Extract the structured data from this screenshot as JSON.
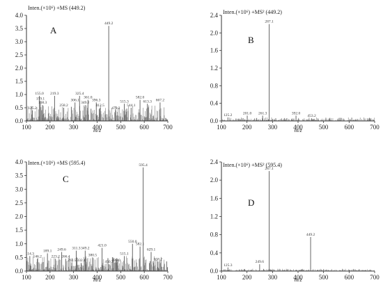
{
  "chart_data": [
    {
      "type": "bar",
      "panel_label": "A",
      "header": "Inten.(×10⁶) +MS (449.2)",
      "xlabel": "m/z",
      "xlim": [
        100,
        700
      ],
      "ylim": [
        0,
        4.0
      ],
      "xticks": [
        100,
        200,
        300,
        400,
        500,
        600,
        700
      ],
      "yticks": [
        "0.0",
        "0.5",
        "1.0",
        "1.5",
        "2.0",
        "2.5",
        "3.0",
        "3.5",
        "4.0"
      ],
      "ytick_values": [
        0,
        0.5,
        1.0,
        1.5,
        2.0,
        2.5,
        3.0,
        3.5,
        4.0
      ],
      "noise_level": 0.6,
      "peaks": [
        {
          "x": 125.2,
          "y": 0.4,
          "label": "125.2"
        },
        {
          "x": 155.0,
          "y": 0.95,
          "label": "155.0"
        },
        {
          "x": 159.1,
          "y": 0.75,
          "label": "159.1"
        },
        {
          "x": 168.3,
          "y": 0.6,
          "label": "168.3"
        },
        {
          "x": 219.3,
          "y": 0.95,
          "label": "219.3"
        },
        {
          "x": 258.2,
          "y": 0.5,
          "label": "258.2"
        },
        {
          "x": 306.1,
          "y": 0.7,
          "label": "306.1"
        },
        {
          "x": 325.4,
          "y": 0.95,
          "label": "325.4"
        },
        {
          "x": 349.2,
          "y": 0.6,
          "label": "349.2"
        },
        {
          "x": 361.0,
          "y": 0.8,
          "label": "361.0"
        },
        {
          "x": 396.3,
          "y": 0.7,
          "label": "396.3"
        },
        {
          "x": 412.5,
          "y": 0.5,
          "label": "412.5"
        },
        {
          "x": 449.2,
          "y": 3.6,
          "label": "449.2"
        },
        {
          "x": 479.2,
          "y": 0.4,
          "label": "479.2"
        },
        {
          "x": 515.3,
          "y": 0.65,
          "label": "515.3"
        },
        {
          "x": 544.1,
          "y": 0.5,
          "label": "544.1"
        },
        {
          "x": 582.0,
          "y": 0.8,
          "label": "582.0"
        },
        {
          "x": 613.3,
          "y": 0.65,
          "label": "613.3"
        },
        {
          "x": 667.2,
          "y": 0.7,
          "label": "667.2"
        }
      ]
    },
    {
      "type": "bar",
      "panel_label": "B",
      "header": "Inten.(×10⁶) +MS² (449.2)",
      "xlabel": "m/z",
      "xlim": [
        100,
        700
      ],
      "ylim": [
        0,
        2.4
      ],
      "xticks": [
        100,
        200,
        300,
        400,
        500,
        600,
        700
      ],
      "yticks": [
        "0.0",
        "0.4",
        "0.8",
        "1.2",
        "1.6",
        "2.0",
        "2.4"
      ],
      "ytick_values": [
        0,
        0.4,
        0.8,
        1.2,
        1.6,
        2.0,
        2.4
      ],
      "noise_level": 0.08,
      "peaks": [
        {
          "x": 125.2,
          "y": 0.08,
          "label": "125.2"
        },
        {
          "x": 201.0,
          "y": 0.12,
          "label": "201.0"
        },
        {
          "x": 261.3,
          "y": 0.12,
          "label": "261.3"
        },
        {
          "x": 287.1,
          "y": 2.2,
          "label": "287.1"
        },
        {
          "x": 392.0,
          "y": 0.12,
          "label": "392.0"
        },
        {
          "x": 453.2,
          "y": 0.06,
          "label": "453.2"
        }
      ]
    },
    {
      "type": "bar",
      "panel_label": "C",
      "header": "Inten.(×10⁶) +MS (595.4)",
      "xlabel": "m/z",
      "xlim": [
        100,
        700
      ],
      "ylim": [
        0,
        4.0
      ],
      "xticks": [
        100,
        200,
        300,
        400,
        500,
        600,
        700
      ],
      "yticks": [
        "0.0",
        "0.5",
        "1.0",
        "1.5",
        "2.0",
        "2.5",
        "3.0",
        "3.5",
        "4.0"
      ],
      "ytick_values": [
        0,
        0.5,
        1.0,
        1.5,
        2.0,
        2.5,
        3.0,
        3.5,
        4.0
      ],
      "noise_level": 0.55,
      "peaks": [
        {
          "x": 114.3,
          "y": 0.55,
          "label": "114.3"
        },
        {
          "x": 146.2,
          "y": 0.45,
          "label": "146.2"
        },
        {
          "x": 189.1,
          "y": 0.65,
          "label": "189.1"
        },
        {
          "x": 223.2,
          "y": 0.45,
          "label": "223.2"
        },
        {
          "x": 249.6,
          "y": 0.7,
          "label": "249.6"
        },
        {
          "x": 266.4,
          "y": 0.45,
          "label": "266.4"
        },
        {
          "x": 292.5,
          "y": 0.3,
          "label": "292.5"
        },
        {
          "x": 311.3,
          "y": 0.75,
          "label": "311.3"
        },
        {
          "x": 332.1,
          "y": 0.3,
          "label": "332.1"
        },
        {
          "x": 349.2,
          "y": 0.75,
          "label": "349.2"
        },
        {
          "x": 380.5,
          "y": 0.5,
          "label": "380.5"
        },
        {
          "x": 421.0,
          "y": 0.85,
          "label": "421.0"
        },
        {
          "x": 450.3,
          "y": 0.25,
          "label": "450.3"
        },
        {
          "x": 480.0,
          "y": 0.3,
          "label": "480.0"
        },
        {
          "x": 515.1,
          "y": 0.55,
          "label": "515.1"
        },
        {
          "x": 550.0,
          "y": 1.0,
          "label": "550.0"
        },
        {
          "x": 582.1,
          "y": 0.9,
          "label": "582.1"
        },
        {
          "x": 595.4,
          "y": 3.8,
          "label": "595.4"
        },
        {
          "x": 629.1,
          "y": 0.7,
          "label": "629.1"
        },
        {
          "x": 658.2,
          "y": 0.35,
          "label": "658.2"
        }
      ]
    },
    {
      "type": "bar",
      "panel_label": "D",
      "header": "Inten.(×10⁶) +MS² (595.4)",
      "xlabel": "m/z",
      "xlim": [
        100,
        700
      ],
      "ylim": [
        0,
        2.4
      ],
      "xticks": [
        100,
        200,
        300,
        400,
        500,
        600,
        700
      ],
      "yticks": [
        "0.0",
        "0.4",
        "0.8",
        "1.2",
        "1.6",
        "2.0",
        "2.4"
      ],
      "ytick_values": [
        0,
        0.4,
        0.8,
        1.2,
        1.6,
        2.0,
        2.4
      ],
      "noise_level": 0.05,
      "peaks": [
        {
          "x": 125.3,
          "y": 0.08,
          "label": "125.3"
        },
        {
          "x": 249.6,
          "y": 0.15,
          "label": "249.6"
        },
        {
          "x": 287.1,
          "y": 2.2,
          "label": "287.1"
        },
        {
          "x": 449.2,
          "y": 0.75,
          "label": "449.2"
        }
      ]
    }
  ]
}
